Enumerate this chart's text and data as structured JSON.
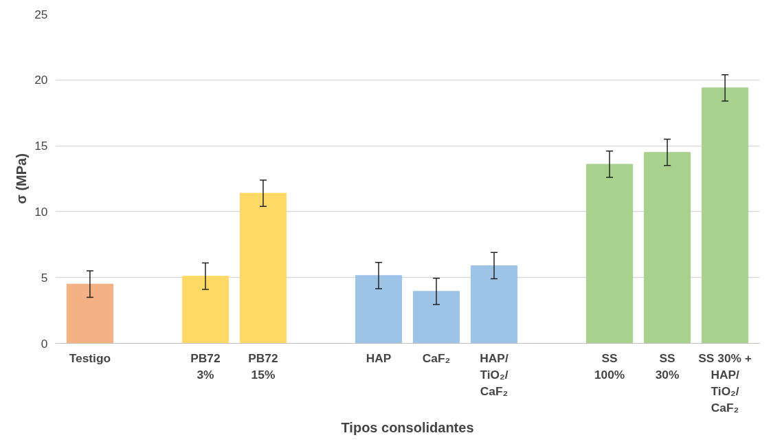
{
  "chart_data": {
    "type": "bar",
    "xlabel": "Tipos consolidantes",
    "ylabel": "σ (MPa)",
    "categories": [
      "Testigo",
      null,
      "PB72\n3%",
      "PB72\n15%",
      null,
      "HAP",
      "CaF₂",
      "HAP/\nTiO₂/\nCaF₂",
      null,
      "SS\n100%",
      "SS\n30%",
      "SS 30% +\nHAP/\nTiO₂/\nCaF₂"
    ],
    "values": [
      4.5,
      null,
      5.1,
      11.4,
      null,
      5.15,
      3.95,
      5.9,
      null,
      13.6,
      14.5,
      19.4
    ],
    "errors": [
      1,
      null,
      1,
      1,
      null,
      1,
      1,
      1,
      null,
      1,
      1,
      1
    ],
    "colors": [
      "#f4b183",
      null,
      "#ffd966",
      "#ffd966",
      null,
      "#9dc3e6",
      "#9dc3e6",
      "#9dc3e6",
      null,
      "#a9d18e",
      "#a9d18e",
      "#a9d18e"
    ],
    "ylim": [
      0,
      25
    ],
    "yticks": [
      0,
      5,
      10,
      15,
      20,
      25
    ],
    "grid": "y"
  }
}
